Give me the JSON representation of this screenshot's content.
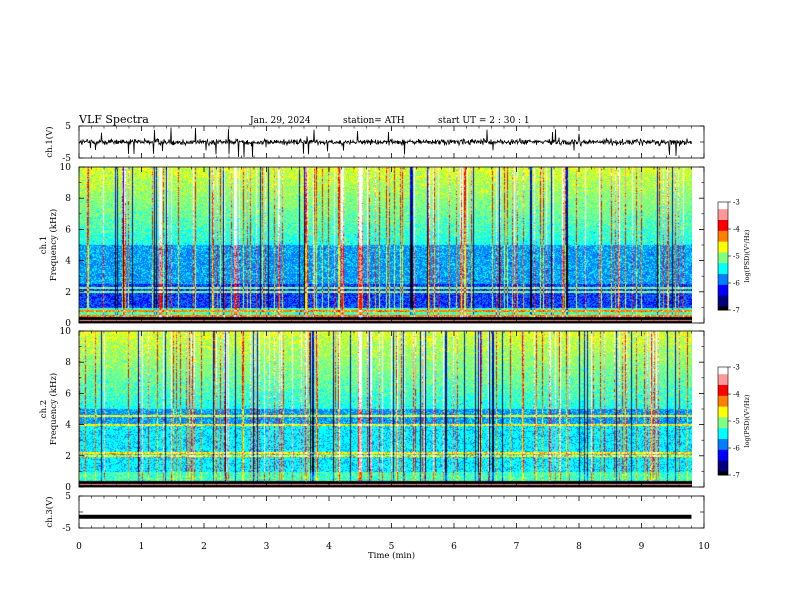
{
  "header": {
    "title": "VLF  Spectra",
    "date": "Jan. 29, 2024",
    "station": "station= ATH",
    "start": "start  UT  =   2  : 30 : 1"
  },
  "chart_data": [
    {
      "type": "line",
      "name": "ch1-waveform",
      "ylabel": "ch.1(V)",
      "ylim": [
        -5,
        5
      ],
      "yticks": [
        "5",
        "-5"
      ],
      "xlim": [
        0,
        10
      ],
      "xlabel": "Time  (min)",
      "xticks": [
        "0",
        "1",
        "2",
        "3",
        "4",
        "5",
        "6",
        "7",
        "8",
        "9",
        "10"
      ],
      "trace_end_min": 9.8,
      "baseline_V": 0,
      "style": "noisy"
    },
    {
      "type": "heatmap",
      "name": "ch1-spectrogram",
      "ylabel": "ch.1\nFrequency  (kHz)",
      "ylim": [
        0,
        10
      ],
      "yticks": [
        "0",
        "2",
        "4",
        "6",
        "8",
        "10"
      ],
      "xlim": [
        0,
        10
      ],
      "time_end_min": 9.8,
      "colorbar": {
        "label": "log(PSD)(V²/Hz)",
        "range": [
          -7,
          -3
        ],
        "ticks": [
          "-3",
          "-4",
          "-5",
          "-6",
          "-7"
        ]
      },
      "lines_kHz": [
        2.0,
        2.3,
        0.8,
        0.5
      ],
      "strong_times_min": [
        1.3,
        2.5,
        4.5
      ]
    },
    {
      "type": "heatmap",
      "name": "ch2-spectrogram",
      "ylabel": "ch.2\nFrequency  (kHz)",
      "ylim": [
        0,
        10
      ],
      "yticks": [
        "0",
        "2",
        "4",
        "6",
        "8",
        "10"
      ],
      "xlim": [
        0,
        10
      ],
      "time_end_min": 9.8,
      "colorbar": {
        "label": "log(PSD)(V²/Hz)",
        "range": [
          -7,
          -3
        ],
        "ticks": [
          "-3",
          "-4",
          "-5",
          "-6",
          "-7"
        ]
      },
      "lines_kHz": [
        2.0,
        2.2,
        4.6,
        4.0
      ],
      "strong_times_min": [
        4.5
      ]
    },
    {
      "type": "line",
      "name": "ch3-waveform",
      "ylabel": "ch.3(V)",
      "ylim": [
        -5,
        5
      ],
      "yticks": [
        "5",
        "-5"
      ],
      "xlim": [
        0,
        10
      ],
      "trace_end_min": 9.8,
      "baseline_V": -1.5,
      "style": "flat"
    }
  ],
  "colors": {
    "cmap": [
      "#000000",
      "#000080",
      "#0000ff",
      "#0080ff",
      "#00ffff",
      "#80ff80",
      "#ffff00",
      "#ff8000",
      "#ff0000",
      "#ff9999",
      "#ffffff"
    ]
  }
}
